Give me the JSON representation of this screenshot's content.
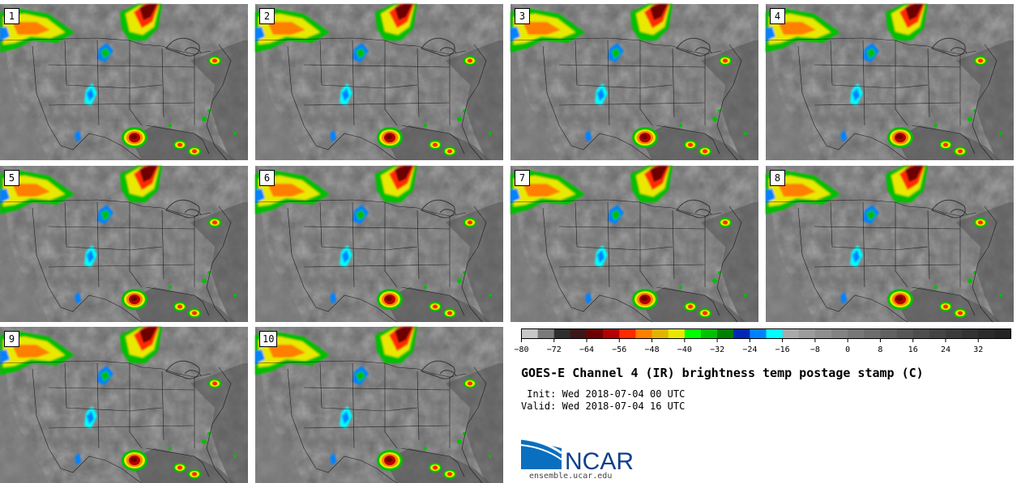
{
  "title": "GOES-E Channel 4 (IR) brightness temp postage stamp (C)",
  "init_label": " Init:",
  "init_value": "Wed 2018-07-04 00 UTC",
  "valid_label": "Valid:",
  "valid_value": "Wed 2018-07-04 16 UTC",
  "panels": [
    "1",
    "2",
    "3",
    "4",
    "5",
    "6",
    "7",
    "8",
    "9",
    "10"
  ],
  "colorbar": {
    "ticks": [
      "-80",
      "-72",
      "-64",
      "-56",
      "-48",
      "-40",
      "-32",
      "-24",
      "-16",
      "-8",
      "0",
      "8",
      "16",
      "24",
      "32"
    ],
    "colors": [
      "#c8c8c8",
      "#7a7a7a",
      "#2e2e2e",
      "#3d1616",
      "#6e0000",
      "#b40000",
      "#ff2a00",
      "#ff7f00",
      "#e0b400",
      "#e8e800",
      "#00ff00",
      "#00c000",
      "#008000",
      "#0028b4",
      "#0082ff",
      "#00ffff",
      "#aaaaaa",
      "#9c9c9c",
      "#8f8f8f",
      "#838383",
      "#777777",
      "#6c6c6c",
      "#616161",
      "#575757",
      "#4d4d4d",
      "#444444",
      "#3b3b3b",
      "#333333",
      "#2b2b2b",
      "#242424"
    ]
  },
  "logo_text": "NCAR",
  "site": "ensemble.ucar.edu"
}
